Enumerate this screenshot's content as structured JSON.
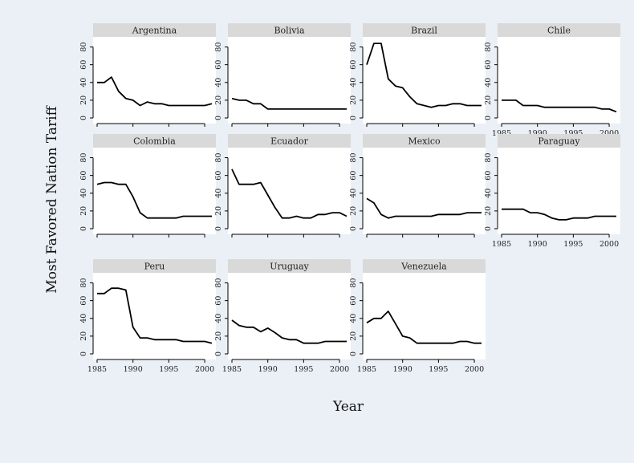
{
  "chart_data": {
    "type": "line",
    "xlabel": "Year",
    "ylabel": "Most Favored Nation Tariff",
    "xlim": [
      1985,
      2001
    ],
    "ylim": [
      0,
      85
    ],
    "xticks": [
      "1985",
      "1990",
      "1995",
      "2000"
    ],
    "yticks": [
      "0",
      "20",
      "40",
      "60",
      "80"
    ],
    "grid": false,
    "colors": {
      "background": "#eaf0f6",
      "panel": "#ffffff",
      "strip": "#d9d9d9",
      "line": "#000000"
    },
    "x": [
      1985,
      1986,
      1987,
      1988,
      1989,
      1990,
      1991,
      1992,
      1993,
      1994,
      1995,
      1996,
      1997,
      1998,
      1999,
      2000,
      2001
    ],
    "series": [
      {
        "name": "Argentina",
        "values": [
          40,
          40,
          46,
          30,
          22,
          20,
          14,
          18,
          16,
          16,
          14,
          14,
          14,
          14,
          14,
          14,
          16
        ]
      },
      {
        "name": "Bolivia",
        "values": [
          22,
          20,
          20,
          16,
          16,
          10,
          10,
          10,
          10,
          10,
          10,
          10,
          10,
          10,
          10,
          10,
          10
        ]
      },
      {
        "name": "Brazil",
        "values": [
          60,
          84,
          84,
          44,
          36,
          34,
          24,
          16,
          14,
          12,
          14,
          14,
          16,
          16,
          14,
          14,
          14
        ]
      },
      {
        "name": "Chile",
        "values": [
          20,
          20,
          20,
          14,
          14,
          14,
          12,
          12,
          12,
          12,
          12,
          12,
          12,
          12,
          10,
          10,
          7
        ]
      },
      {
        "name": "Colombia",
        "values": [
          50,
          52,
          52,
          50,
          50,
          36,
          18,
          12,
          12,
          12,
          12,
          12,
          14,
          14,
          14,
          14,
          14
        ]
      },
      {
        "name": "Ecuador",
        "values": [
          67,
          50,
          50,
          50,
          52,
          38,
          24,
          12,
          12,
          14,
          12,
          12,
          16,
          16,
          18,
          18,
          14
        ]
      },
      {
        "name": "Mexico",
        "values": [
          34,
          29,
          16,
          12,
          14,
          14,
          14,
          14,
          14,
          14,
          16,
          16,
          16,
          16,
          18,
          18,
          18
        ]
      },
      {
        "name": "Paraguay",
        "values": [
          22,
          22,
          22,
          22,
          18,
          18,
          16,
          12,
          10,
          10,
          12,
          12,
          12,
          14,
          14,
          14,
          14
        ]
      },
      {
        "name": "Peru",
        "values": [
          68,
          68,
          74,
          74,
          72,
          30,
          18,
          18,
          16,
          16,
          16,
          16,
          14,
          14,
          14,
          14,
          12
        ]
      },
      {
        "name": "Uruguay",
        "values": [
          38,
          32,
          30,
          30,
          25,
          29,
          24,
          18,
          16,
          16,
          12,
          12,
          12,
          14,
          14,
          14,
          14
        ]
      },
      {
        "name": "Venezuela",
        "values": [
          35,
          40,
          40,
          48,
          34,
          20,
          18,
          12,
          12,
          12,
          12,
          12,
          12,
          14,
          14,
          12,
          12
        ]
      }
    ]
  }
}
